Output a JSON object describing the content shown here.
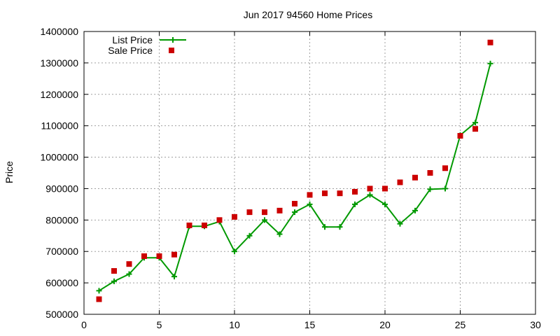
{
  "chart_data": {
    "type": "line",
    "title": "Jun 2017 94560 Home Prices",
    "xlabel": "",
    "ylabel": "Price",
    "xlim": [
      0,
      30
    ],
    "ylim": [
      500000,
      1400000
    ],
    "xticks": [
      0,
      5,
      10,
      15,
      20,
      25,
      30
    ],
    "yticks": [
      500000,
      600000,
      700000,
      800000,
      900000,
      1000000,
      1100000,
      1200000,
      1300000,
      1400000
    ],
    "grid": true,
    "legend_position": "top-left",
    "x": [
      1,
      2,
      3,
      4,
      5,
      6,
      7,
      8,
      9,
      10,
      11,
      12,
      13,
      14,
      15,
      16,
      17,
      18,
      19,
      20,
      21,
      22,
      23,
      24,
      25,
      26,
      27
    ],
    "series": [
      {
        "name": "List Price",
        "style": "line-plus",
        "color": "#009900",
        "values": [
          575000,
          605000,
          628000,
          680000,
          680000,
          620000,
          780000,
          780000,
          795000,
          700000,
          750000,
          800000,
          755000,
          825000,
          850000,
          778000,
          778000,
          850000,
          880000,
          850000,
          788000,
          830000,
          898000,
          900000,
          1070000,
          1110000,
          1298000
        ]
      },
      {
        "name": "Sale Price",
        "style": "square-markers",
        "color": "#cc0000",
        "values": [
          548000,
          638000,
          660000,
          685000,
          685000,
          690000,
          783000,
          783000,
          800000,
          810000,
          825000,
          825000,
          830000,
          852000,
          880000,
          885000,
          885000,
          890000,
          900000,
          900000,
          920000,
          935000,
          950000,
          965000,
          1068000,
          1090000,
          1365000
        ]
      }
    ]
  }
}
